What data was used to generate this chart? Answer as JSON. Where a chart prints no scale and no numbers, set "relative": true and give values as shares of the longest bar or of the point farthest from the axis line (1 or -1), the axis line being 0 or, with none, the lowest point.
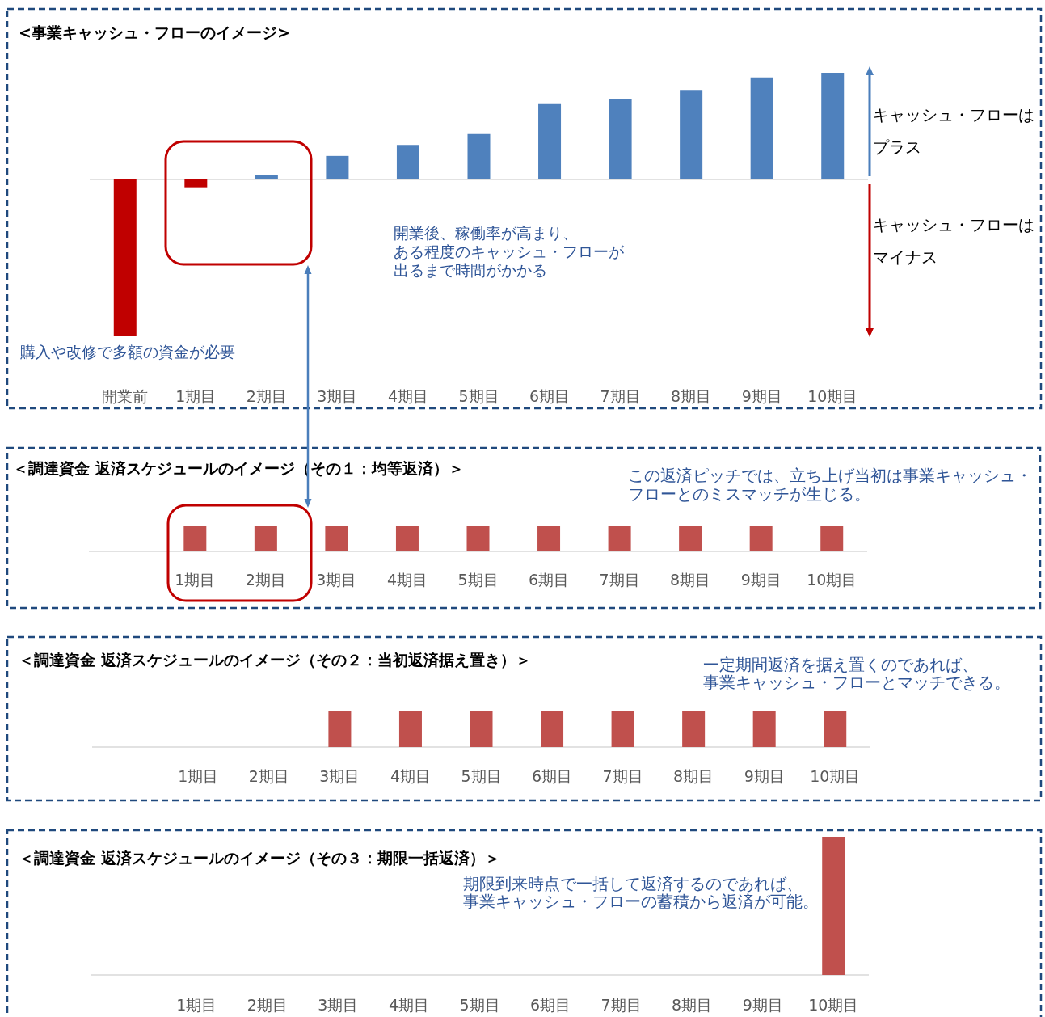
{
  "chart_data": [
    {
      "type": "bar",
      "title": "<事業キャッシュ・フローのイメージ>",
      "categories": [
        "開業前",
        "1期目",
        "2期目",
        "3期目",
        "4期目",
        "5期目",
        "6期目",
        "7期目",
        "8期目",
        "9期目",
        "10期目"
      ],
      "values": [
        -1,
        -0.05,
        0.03,
        0.15,
        0.22,
        0.29,
        0.48,
        0.51,
        0.57,
        0.65,
        0.68
      ],
      "colors": [
        "#c00000",
        "#c00000",
        "#4f81bd",
        "#4f81bd",
        "#4f81bd",
        "#4f81bd",
        "#4f81bd",
        "#4f81bd",
        "#4f81bd",
        "#4f81bd",
        "#4f81bd"
      ],
      "relative": true,
      "annotations": [
        "購入や改修で多額の資金が必要",
        "開業後、稼働率が高まり、ある程度のキャッシュ・フローが出るまで時間がかかる",
        "キャッシュ・フローはプラス",
        "キャッシュ・フローはマイナス"
      ]
    },
    {
      "type": "bar",
      "title": "＜調達資金 返済スケジュールのイメージ（その１：均等返済）＞",
      "categories": [
        null,
        "1期目",
        "2期目",
        "3期目",
        "4期目",
        "5期目",
        "6期目",
        "7期目",
        "8期目",
        "9期目",
        "10期目"
      ],
      "values": [
        null,
        1,
        1,
        1,
        1,
        1,
        1,
        1,
        1,
        1,
        1
      ],
      "color": "#c0504d",
      "relative": true,
      "annotations": [
        "この返済ピッチでは、立ち上げ当初は事業キャッシュ・フローとのミスマッチが生じる。"
      ]
    },
    {
      "type": "bar",
      "title": "＜調達資金 返済スケジュールのイメージ（その２：当初返済据え置き）＞",
      "categories": [
        null,
        "1期目",
        "2期目",
        "3期目",
        "4期目",
        "5期目",
        "6期目",
        "7期目",
        "8期目",
        "9期目",
        "10期目"
      ],
      "values": [
        null,
        0,
        0,
        1,
        1,
        1,
        1,
        1,
        1,
        1,
        1
      ],
      "color": "#c0504d",
      "relative": true,
      "annotations": [
        "一定期間返済を据え置くのであれば、事業キャッシュ・フローとマッチできる。"
      ]
    },
    {
      "type": "bar",
      "title": "＜調達資金 返済スケジュールのイメージ（その３：期限一括返済）＞",
      "categories": [
        null,
        "1期目",
        "2期目",
        "3期目",
        "4期目",
        "5期目",
        "6期目",
        "7期目",
        "8期目",
        "9期目",
        "10期目"
      ],
      "values": [
        null,
        0,
        0,
        0,
        0,
        0,
        0,
        0,
        0,
        0,
        1
      ],
      "color": "#c0504d",
      "relative": true,
      "annotations": [
        "期限到来時点で一括して返済するのであれば、事業キャッシュ・フローの蓄積から返済が可能。"
      ]
    }
  ]
}
